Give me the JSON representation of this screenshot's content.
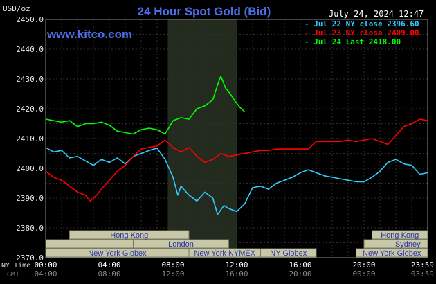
{
  "header": {
    "unit": "USD/oz",
    "title": "24 Hour Spot Gold (Bid)",
    "timestamp": "July 24, 2024 12:47",
    "site": "www.kitco.com"
  },
  "legend": [
    {
      "label": "- Jul 22 NY close 2396.60",
      "color": "#33ccff"
    },
    {
      "label": "- Jul 23 NY close 2409.00",
      "color": "#ff0000"
    },
    {
      "label": "- Jul 24 Last 2418.00",
      "color": "#00ff00"
    }
  ],
  "sessions": {
    "row1": [
      "Hong Kong",
      "Hong Kong"
    ],
    "row2": [
      "London",
      "Sydney"
    ],
    "row3": [
      "New York Globex",
      "New York NYMEX",
      "NY Globex",
      "New York Globex"
    ]
  },
  "x_axis": {
    "row_labels": [
      "NY Time",
      "GMT"
    ],
    "ny_ticks": [
      "00:00",
      "04:00",
      "08:00",
      "12:00",
      "16:00",
      "20:00",
      "23:59"
    ],
    "gmt_ticks": [
      "04:00",
      "08:00",
      "12:00",
      "16:00",
      "20:00",
      "00:00",
      "03:59"
    ]
  },
  "chart_data": {
    "type": "line",
    "title": "24 Hour Spot Gold (Bid)",
    "ylabel": "USD/oz",
    "xlabel": "NY Time",
    "x_unit": "hours (NY time)",
    "xlim": [
      0,
      24
    ],
    "ylim": [
      2370,
      2450
    ],
    "yticks": [
      "2450.0",
      "2440.0",
      "2430.0",
      "2420.0",
      "2410.0",
      "2400.0",
      "2390.0",
      "2380.0",
      "2370.0"
    ],
    "grid": true,
    "highlight_band": [
      7.67,
      12
    ],
    "series": [
      {
        "name": "Jul 22 NY close 2396.60",
        "color": "#33ccff",
        "points": [
          [
            0,
            2407
          ],
          [
            0.5,
            2405.5
          ],
          [
            1,
            2406
          ],
          [
            1.5,
            2403.5
          ],
          [
            2,
            2404
          ],
          [
            2.5,
            2402.5
          ],
          [
            3,
            2401
          ],
          [
            3.5,
            2403
          ],
          [
            4,
            2402
          ],
          [
            4.5,
            2403.5
          ],
          [
            5,
            2401.5
          ],
          [
            5.5,
            2404
          ],
          [
            6,
            2405
          ],
          [
            6.5,
            2406
          ],
          [
            7,
            2406.8
          ],
          [
            7.5,
            2403
          ],
          [
            8,
            2397
          ],
          [
            8.3,
            2391
          ],
          [
            8.5,
            2394
          ],
          [
            9,
            2391
          ],
          [
            9.5,
            2389
          ],
          [
            10,
            2392
          ],
          [
            10.5,
            2390
          ],
          [
            10.8,
            2384.5
          ],
          [
            11.2,
            2387.5
          ],
          [
            11.5,
            2386.5
          ],
          [
            12,
            2385.5
          ],
          [
            12.5,
            2388
          ],
          [
            13,
            2393.5
          ],
          [
            13.5,
            2394
          ],
          [
            14,
            2393
          ],
          [
            14.5,
            2395
          ],
          [
            15,
            2396
          ],
          [
            15.5,
            2397
          ],
          [
            16,
            2398.5
          ],
          [
            16.5,
            2399.5
          ],
          [
            17,
            2398.5
          ],
          [
            17.5,
            2397.5
          ],
          [
            18,
            2397
          ],
          [
            18.5,
            2396.5
          ],
          [
            19,
            2396
          ],
          [
            19.5,
            2395.5
          ],
          [
            20,
            2395.5
          ],
          [
            20.5,
            2397
          ],
          [
            21,
            2399
          ],
          [
            21.5,
            2402
          ],
          [
            22,
            2403
          ],
          [
            22.5,
            2401.5
          ],
          [
            23,
            2401
          ],
          [
            23.5,
            2398
          ],
          [
            24,
            2398.5
          ]
        ]
      },
      {
        "name": "Jul 23 NY close 2409.00",
        "color": "#ff0000",
        "points": [
          [
            0,
            2399
          ],
          [
            0.5,
            2397
          ],
          [
            1,
            2396
          ],
          [
            1.5,
            2394
          ],
          [
            2,
            2392
          ],
          [
            2.5,
            2391
          ],
          [
            2.8,
            2389
          ],
          [
            3.2,
            2391
          ],
          [
            3.5,
            2393
          ],
          [
            4,
            2396
          ],
          [
            4.5,
            2399
          ],
          [
            5,
            2401
          ],
          [
            5.5,
            2404
          ],
          [
            6,
            2406.5
          ],
          [
            6.5,
            2407
          ],
          [
            7,
            2407.5
          ],
          [
            7.5,
            2409.5
          ],
          [
            8,
            2407
          ],
          [
            8.5,
            2405.5
          ],
          [
            9,
            2407
          ],
          [
            9.5,
            2404
          ],
          [
            10,
            2402
          ],
          [
            10.5,
            2403
          ],
          [
            11,
            2405
          ],
          [
            11.5,
            2404
          ],
          [
            12,
            2404.5
          ],
          [
            12.5,
            2405
          ],
          [
            13,
            2405.5
          ],
          [
            13.5,
            2406
          ],
          [
            14,
            2406
          ],
          [
            14.5,
            2406.5
          ],
          [
            15,
            2406.5
          ],
          [
            15.5,
            2406.5
          ],
          [
            16,
            2406.5
          ],
          [
            16.5,
            2406.5
          ],
          [
            17,
            2409
          ],
          [
            17.5,
            2409
          ],
          [
            18,
            2409
          ],
          [
            18.5,
            2409
          ],
          [
            19,
            2409.5
          ],
          [
            19.5,
            2409
          ],
          [
            20,
            2409.5
          ],
          [
            20.5,
            2410
          ],
          [
            21,
            2409
          ],
          [
            21.5,
            2408
          ],
          [
            22,
            2411
          ],
          [
            22.5,
            2414
          ],
          [
            23,
            2415
          ],
          [
            23.5,
            2416.5
          ],
          [
            24,
            2416
          ]
        ]
      },
      {
        "name": "Jul 24 Last 2418.00",
        "color": "#00ff00",
        "points": [
          [
            0,
            2416.5
          ],
          [
            0.5,
            2416
          ],
          [
            1,
            2415.5
          ],
          [
            1.5,
            2416
          ],
          [
            2,
            2414
          ],
          [
            2.5,
            2415
          ],
          [
            3,
            2415
          ],
          [
            3.5,
            2415.5
          ],
          [
            4,
            2414.5
          ],
          [
            4.5,
            2412.5
          ],
          [
            5,
            2412
          ],
          [
            5.5,
            2411.5
          ],
          [
            6,
            2413
          ],
          [
            6.5,
            2413.5
          ],
          [
            7,
            2413
          ],
          [
            7.5,
            2411.5
          ],
          [
            8,
            2416
          ],
          [
            8.5,
            2417
          ],
          [
            9,
            2416.5
          ],
          [
            9.5,
            2420
          ],
          [
            10,
            2421
          ],
          [
            10.5,
            2423
          ],
          [
            10.8,
            2428
          ],
          [
            11,
            2431
          ],
          [
            11.3,
            2427
          ],
          [
            11.6,
            2425
          ],
          [
            11.9,
            2422.5
          ],
          [
            12.2,
            2420.5
          ],
          [
            12.5,
            2419
          ]
        ]
      }
    ]
  }
}
